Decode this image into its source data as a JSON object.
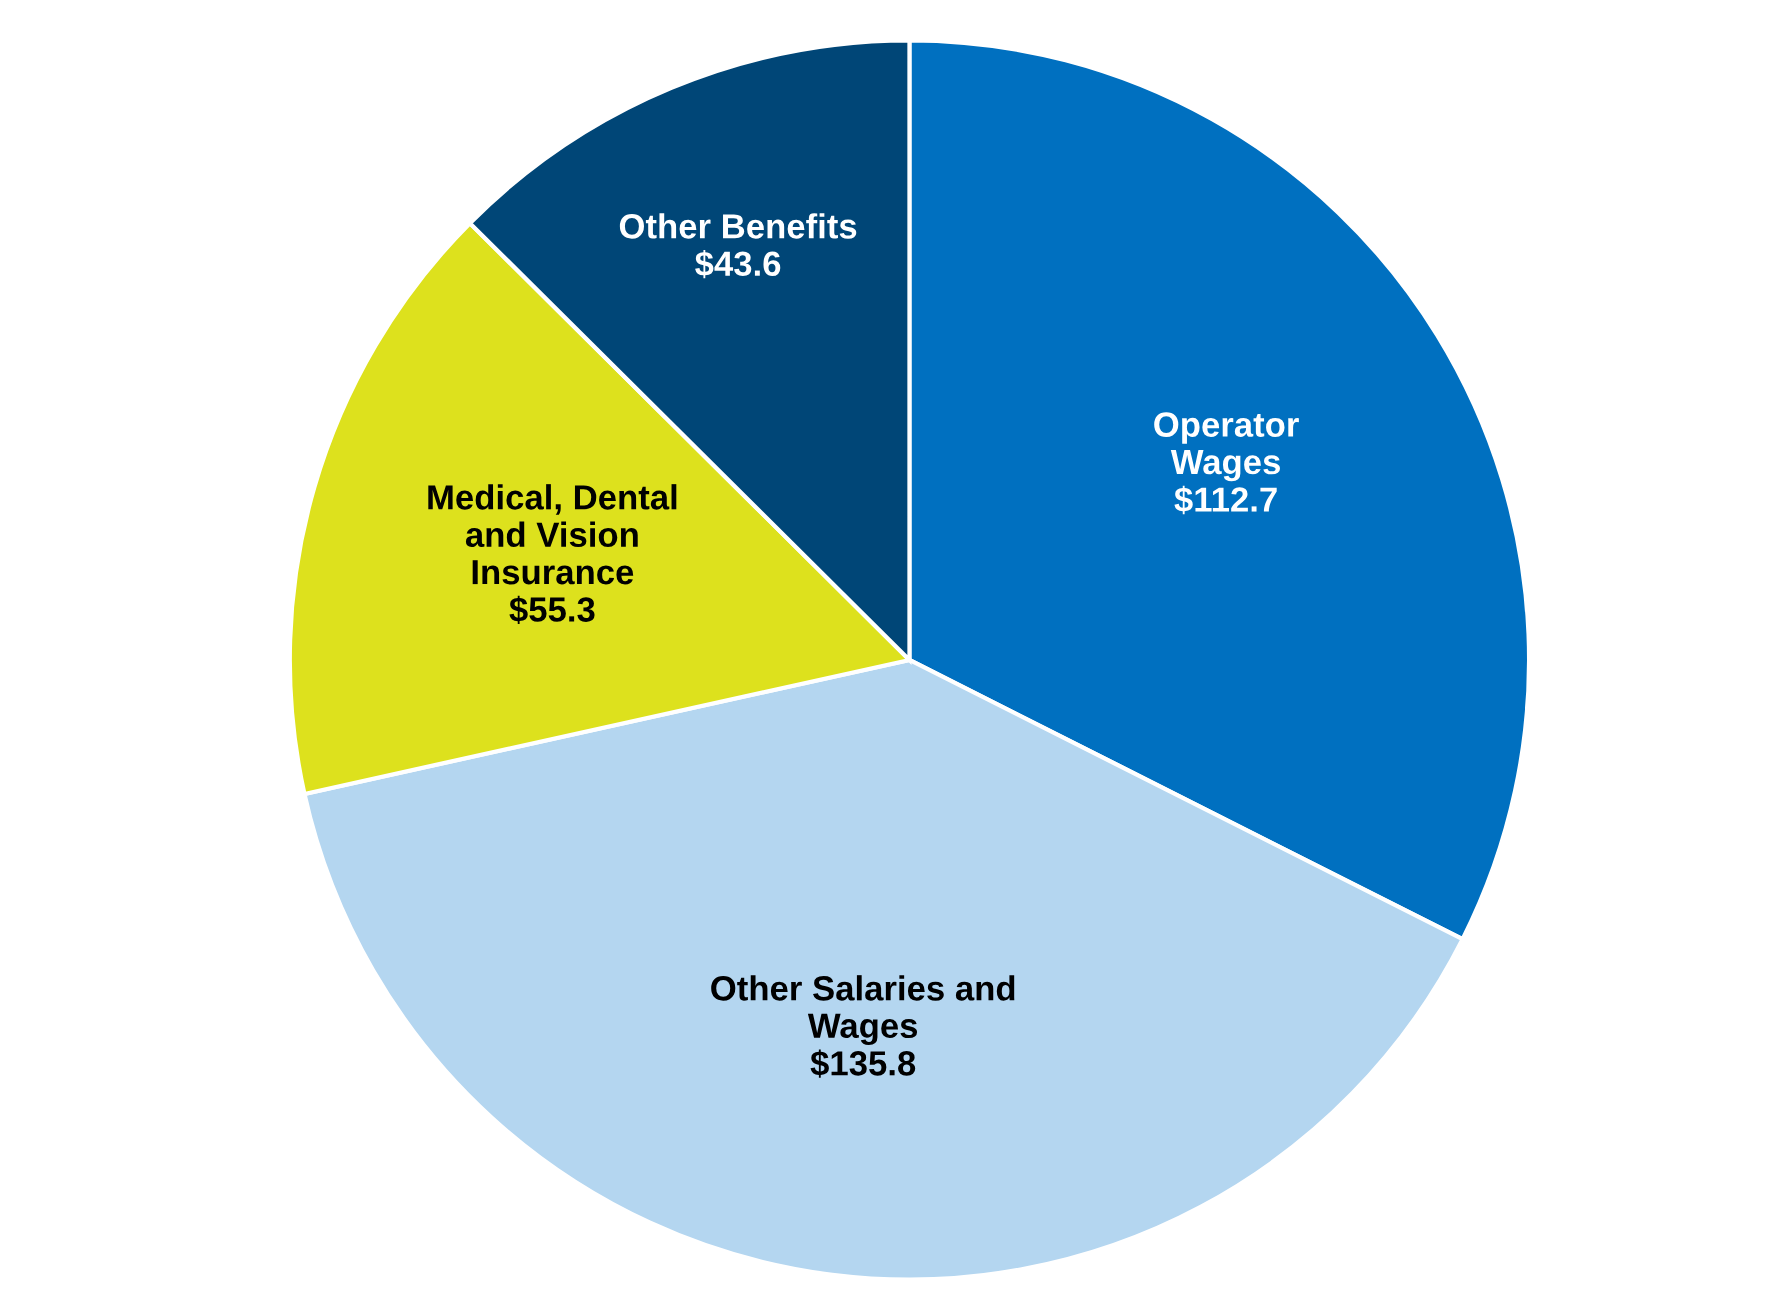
{
  "chart_data": {
    "type": "pie",
    "categories": [
      "Operator\nWages",
      "Other Salaries and\nWages",
      "Medical, Dental\nand Vision\nInsurance",
      "Other Benefits"
    ],
    "values": [
      112.7,
      135.8,
      55.3,
      43.6
    ],
    "value_labels": [
      "$112.7",
      "$135.8",
      "$55.3",
      "$43.6"
    ],
    "colors": [
      "#0070c0",
      "#b4d6f0",
      "#dde11d",
      "#004677"
    ]
  }
}
